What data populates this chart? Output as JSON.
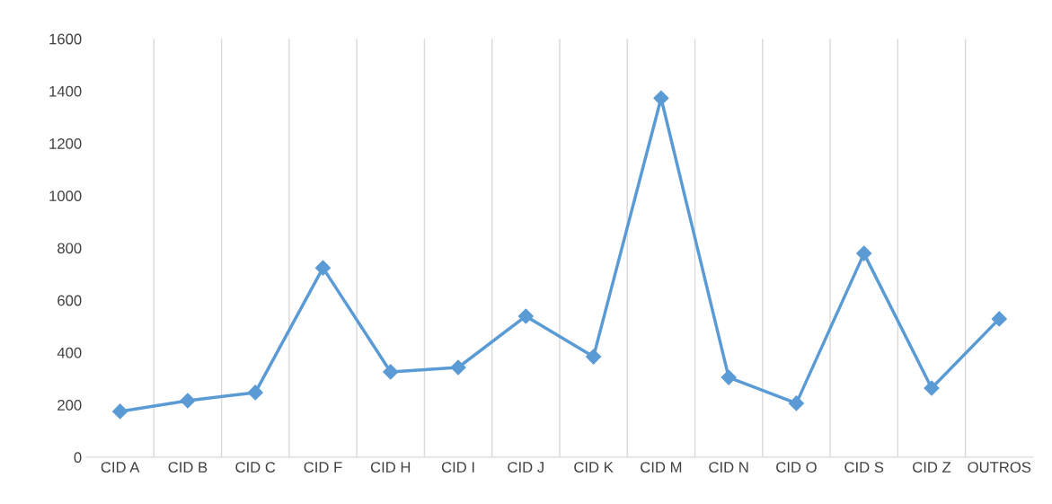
{
  "chart_data": {
    "type": "line",
    "categories": [
      "CID A",
      "CID B",
      "CID C",
      "CID F",
      "CID H",
      "CID I",
      "CID J",
      "CID K",
      "CID M",
      "CID N",
      "CID O",
      "CID S",
      "CID Z",
      "OUTROS"
    ],
    "series": [
      {
        "color": "#5b9bd5",
        "values": [
          175,
          216,
          247,
          724,
          326,
          343,
          539,
          384,
          1373,
          305,
          206,
          779,
          264,
          529
        ]
      }
    ],
    "ylim": [
      0,
      1600
    ],
    "yticks": [
      0,
      200,
      400,
      600,
      800,
      1000,
      1200,
      1400,
      1600
    ],
    "grid": "x",
    "marker": "diamond",
    "line_style": "solid"
  }
}
